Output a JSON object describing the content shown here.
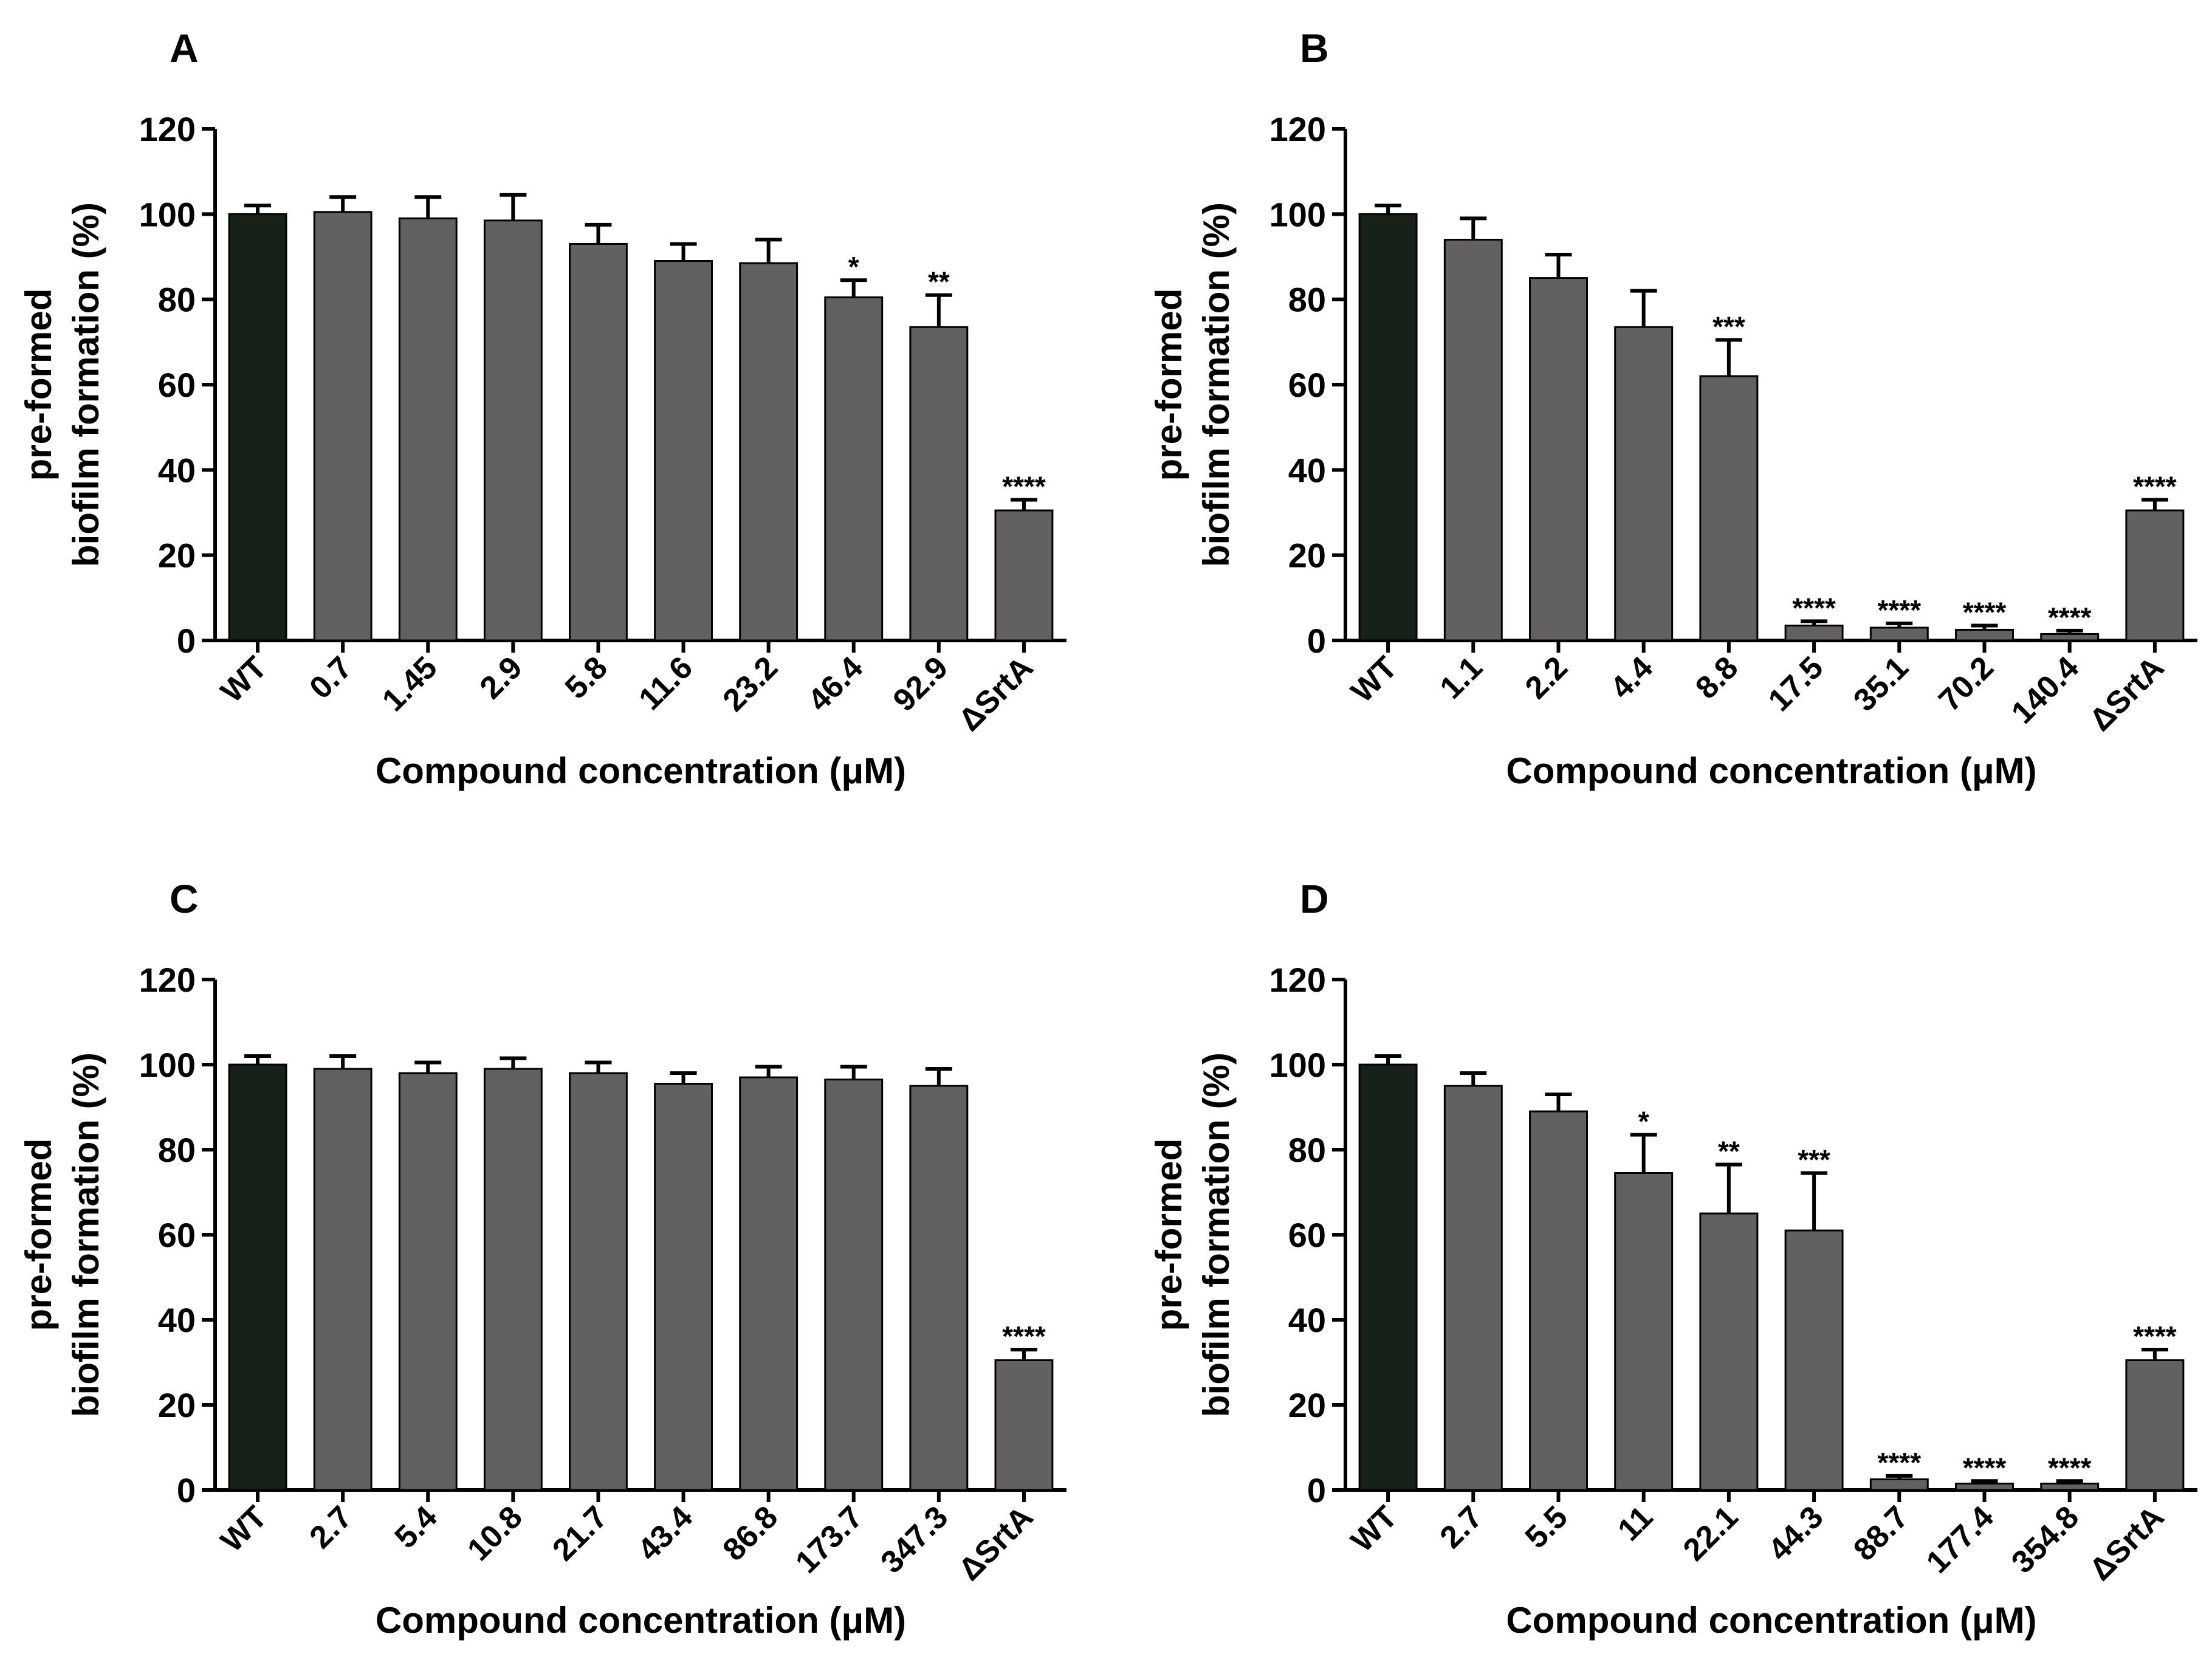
{
  "chart_data": [
    {
      "type": "bar",
      "panel": "A",
      "categories": [
        "WT",
        "0.7",
        "1.45",
        "2.9",
        "5.8",
        "11.6",
        "23.2",
        "46.4",
        "92.9",
        "ΔSrtA"
      ],
      "values": [
        100,
        100.5,
        99,
        98.5,
        93,
        89,
        88.5,
        80.5,
        73.5,
        30.5
      ],
      "errors": [
        2,
        3.5,
        5,
        6,
        4.5,
        4,
        5.5,
        4,
        7.5,
        2.5
      ],
      "significance": [
        "",
        "",
        "",
        "",
        "",
        "",
        "",
        "*",
        "**",
        "****"
      ],
      "xlabel": "Compound concentration (μM)",
      "ylabel_line1": "pre-formed",
      "ylabel_line2": "biofilm formation (%)",
      "ylim": [
        0,
        120
      ],
      "yticks": [
        "0",
        "20",
        "40",
        "60",
        "80",
        "100",
        "120"
      ]
    },
    {
      "type": "bar",
      "panel": "B",
      "categories": [
        "WT",
        "1.1",
        "2.2",
        "4.4",
        "8.8",
        "17.5",
        "35.1",
        "70.2",
        "140.4",
        "ΔSrtA"
      ],
      "values": [
        100,
        94,
        85,
        73.5,
        62,
        3.5,
        3,
        2.5,
        1.5,
        30.5
      ],
      "errors": [
        2,
        5,
        5.5,
        8.5,
        8.5,
        1,
        1,
        1,
        0.8,
        2.5
      ],
      "significance": [
        "",
        "",
        "",
        "",
        "***",
        "****",
        "****",
        "****",
        "****",
        "****"
      ],
      "xlabel": "Compound concentration (μM)",
      "ylabel_line1": "pre-formed",
      "ylabel_line2": "biofilm formation (%)",
      "ylim": [
        0,
        120
      ],
      "yticks": [
        "0",
        "20",
        "40",
        "60",
        "80",
        "100",
        "120"
      ]
    },
    {
      "type": "bar",
      "panel": "C",
      "categories": [
        "WT",
        "2.7",
        "5.4",
        "10.8",
        "21.7",
        "43.4",
        "86.8",
        "173.7",
        "347.3",
        "ΔSrtA"
      ],
      "values": [
        100,
        99,
        98,
        99,
        98,
        95.5,
        97,
        96.5,
        95,
        30.5
      ],
      "errors": [
        2,
        3,
        2.5,
        2.5,
        2.5,
        2.5,
        2.5,
        3,
        4,
        2.5
      ],
      "significance": [
        "",
        "",
        "",
        "",
        "",
        "",
        "",
        "",
        "",
        "****"
      ],
      "xlabel": "Compound concentration (μM)",
      "ylabel_line1": "pre-formed",
      "ylabel_line2": "biofilm formation (%)",
      "ylim": [
        0,
        120
      ],
      "yticks": [
        "0",
        "20",
        "40",
        "60",
        "80",
        "100",
        "120"
      ]
    },
    {
      "type": "bar",
      "panel": "D",
      "categories": [
        "WT",
        "2.7",
        "5.5",
        "11",
        "22.1",
        "44.3",
        "88.7",
        "177.4",
        "354.8",
        "ΔSrtA"
      ],
      "values": [
        100,
        95,
        89,
        74.5,
        65,
        61,
        2.5,
        1.5,
        1.5,
        30.5
      ],
      "errors": [
        2,
        3,
        4,
        9,
        11.5,
        13.5,
        0.8,
        0.6,
        0.6,
        2.5
      ],
      "significance": [
        "",
        "",
        "",
        "*",
        "**",
        "***",
        "****",
        "****",
        "****",
        "****"
      ],
      "xlabel": "Compound concentration (μM)",
      "ylabel_line1": "pre-formed",
      "ylabel_line2": "biofilm formation (%)",
      "ylim": [
        0,
        120
      ],
      "yticks": [
        "0",
        "20",
        "40",
        "60",
        "80",
        "100",
        "120"
      ]
    }
  ],
  "colors": {
    "wt_bar": "#172019",
    "treated_bar": "#626060",
    "axis": "#000000"
  }
}
